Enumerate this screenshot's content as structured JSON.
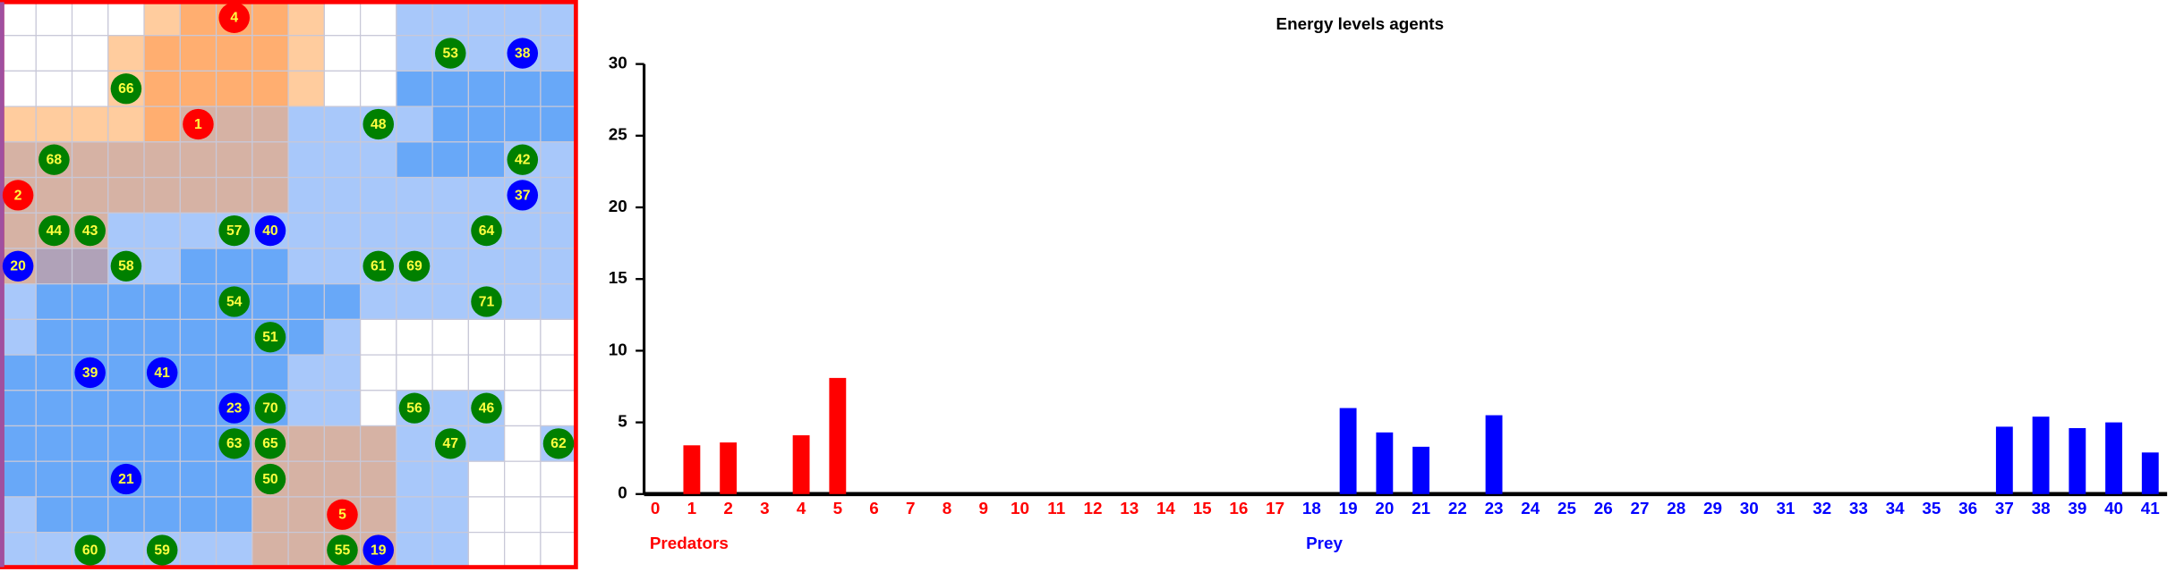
{
  "world": {
    "agents": [
      {
        "label": "4",
        "color": "#ff0000",
        "x": 6,
        "y": 0
      },
      {
        "label": "53",
        "color": "#008000",
        "x": 12,
        "y": 1
      },
      {
        "label": "38",
        "color": "#0000ff",
        "x": 14,
        "y": 1
      },
      {
        "label": "66",
        "color": "#008000",
        "x": 3,
        "y": 2
      },
      {
        "label": "1",
        "color": "#ff0000",
        "x": 5,
        "y": 3
      },
      {
        "label": "48",
        "color": "#008000",
        "x": 10,
        "y": 3
      },
      {
        "label": "68",
        "color": "#008000",
        "x": 1,
        "y": 4
      },
      {
        "label": "42",
        "color": "#008000",
        "x": 14,
        "y": 4
      },
      {
        "label": "2",
        "color": "#ff0000",
        "x": 0,
        "y": 5
      },
      {
        "label": "37",
        "color": "#0000ff",
        "x": 14,
        "y": 5
      },
      {
        "label": "44",
        "color": "#008000",
        "x": 1,
        "y": 6
      },
      {
        "label": "43",
        "color": "#008000",
        "x": 2,
        "y": 6
      },
      {
        "label": "57",
        "color": "#008000",
        "x": 6,
        "y": 6
      },
      {
        "label": "40",
        "color": "#0000ff",
        "x": 7,
        "y": 6
      },
      {
        "label": "64",
        "color": "#008000",
        "x": 13,
        "y": 6
      },
      {
        "label": "20",
        "color": "#0000ff",
        "x": 0,
        "y": 7
      },
      {
        "label": "58",
        "color": "#008000",
        "x": 3,
        "y": 7
      },
      {
        "label": "61",
        "color": "#008000",
        "x": 10,
        "y": 7
      },
      {
        "label": "69",
        "color": "#008000",
        "x": 11,
        "y": 7
      },
      {
        "label": "54",
        "color": "#008000",
        "x": 6,
        "y": 8
      },
      {
        "label": "71",
        "color": "#008000",
        "x": 13,
        "y": 8
      },
      {
        "label": "51",
        "color": "#008000",
        "x": 7,
        "y": 9
      },
      {
        "label": "39",
        "color": "#0000ff",
        "x": 2,
        "y": 10
      },
      {
        "label": "41",
        "color": "#0000ff",
        "x": 4,
        "y": 10
      },
      {
        "label": "23",
        "color": "#0000ff",
        "x": 6,
        "y": 11
      },
      {
        "label": "70",
        "color": "#008000",
        "x": 7,
        "y": 11
      },
      {
        "label": "56",
        "color": "#008000",
        "x": 11,
        "y": 11
      },
      {
        "label": "46",
        "color": "#008000",
        "x": 13,
        "y": 11
      },
      {
        "label": "63",
        "color": "#008000",
        "x": 6,
        "y": 12
      },
      {
        "label": "65",
        "color": "#008000",
        "x": 7,
        "y": 12
      },
      {
        "label": "47",
        "color": "#008000",
        "x": 12,
        "y": 12
      },
      {
        "label": "62",
        "color": "#008000",
        "x": 15,
        "y": 12
      },
      {
        "label": "21",
        "color": "#0000ff",
        "x": 3,
        "y": 13
      },
      {
        "label": "50",
        "color": "#008000",
        "x": 7,
        "y": 13
      },
      {
        "label": "5",
        "color": "#ff0000",
        "x": 9,
        "y": 14
      },
      {
        "label": "60",
        "color": "#008000",
        "x": 2,
        "y": 15
      },
      {
        "label": "59",
        "color": "#008000",
        "x": 4,
        "y": 15
      },
      {
        "label": "55",
        "color": "#008000",
        "x": 9,
        "y": 15
      },
      {
        "label": "19",
        "color": "#0000ff",
        "x": 10,
        "y": 15
      }
    ]
  },
  "chart_data": {
    "type": "bar",
    "title": "Energy levels agents",
    "categories": [
      "0",
      "1",
      "2",
      "3",
      "4",
      "5",
      "6",
      "7",
      "8",
      "9",
      "10",
      "11",
      "12",
      "13",
      "14",
      "15",
      "16",
      "17",
      "18",
      "19",
      "20",
      "21",
      "22",
      "23",
      "24",
      "25",
      "26",
      "27",
      "28",
      "29",
      "30",
      "31",
      "32",
      "33",
      "34",
      "35",
      "36",
      "37",
      "38",
      "39",
      "40",
      "41"
    ],
    "series": [
      {
        "name": "Predators",
        "color": "#ff0000",
        "values": [
          0,
          3.4,
          3.6,
          0,
          4.1,
          8.1,
          0,
          0,
          0,
          0,
          0,
          0,
          0,
          0,
          0,
          0,
          0,
          0,
          null,
          null,
          null,
          null,
          null,
          null,
          null,
          null,
          null,
          null,
          null,
          null,
          null,
          null,
          null,
          null,
          null,
          null,
          null,
          null,
          null,
          null,
          null,
          null
        ]
      },
      {
        "name": "Prey",
        "color": "#0000ff",
        "values": [
          null,
          null,
          null,
          null,
          null,
          null,
          null,
          null,
          null,
          null,
          null,
          null,
          null,
          null,
          null,
          null,
          null,
          null,
          0,
          6.0,
          4.3,
          3.3,
          0,
          5.5,
          0,
          0,
          0,
          0,
          0,
          0,
          0,
          0,
          0,
          0,
          0,
          0,
          0,
          4.7,
          5.4,
          4.6,
          5.0,
          2.9
        ]
      }
    ],
    "ylim": [
      0,
      30
    ],
    "yticks": [
      0,
      5,
      10,
      15,
      20,
      25,
      30
    ]
  }
}
